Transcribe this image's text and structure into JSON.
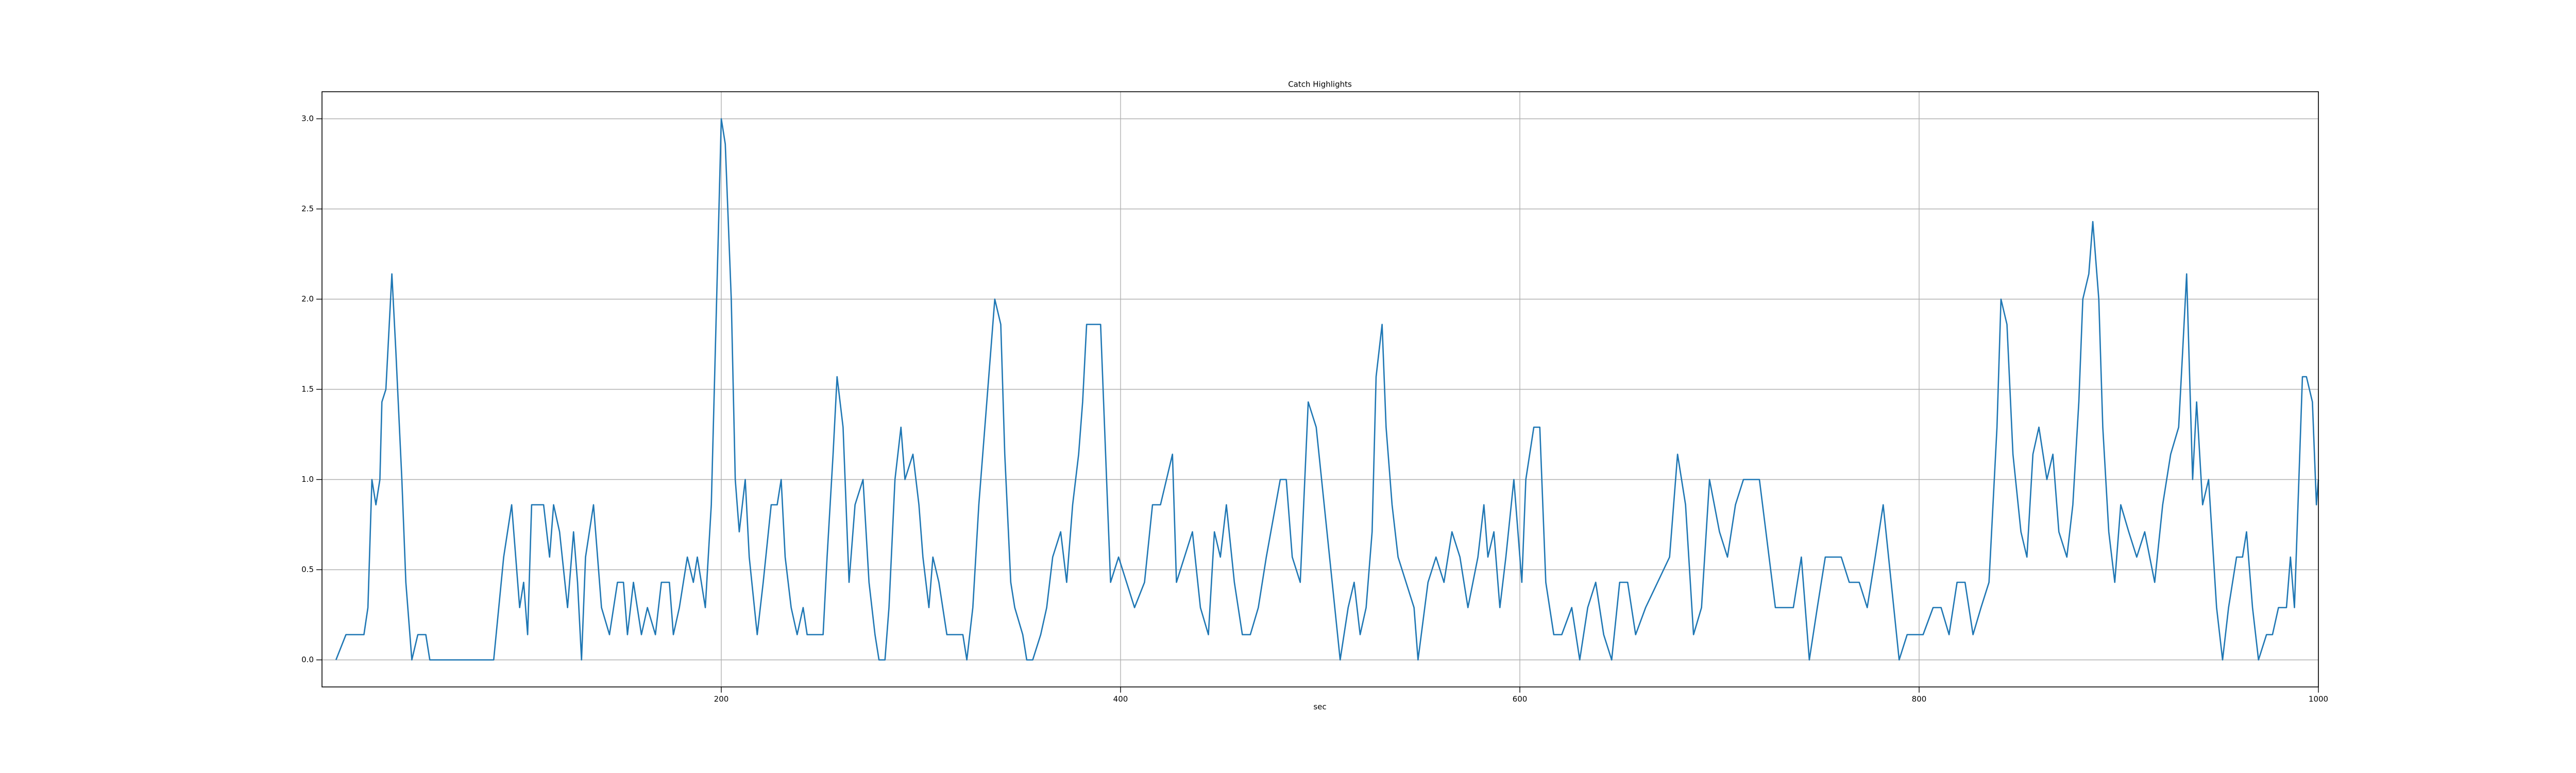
{
  "chart_data": {
    "type": "line",
    "title": "Catch Highlights",
    "xlabel": "sec",
    "color": "#1f77b4",
    "grid": true,
    "xlim": [
      0,
      1000
    ],
    "xticks": [
      200,
      400,
      600,
      800,
      1000
    ],
    "ylim": [
      -0.15,
      3.15
    ],
    "yticks": [
      {
        "value": 0,
        "label": "0.0"
      },
      0.5,
      {
        "value": 1,
        "label": "1.0"
      },
      1.5,
      {
        "value": 2,
        "label": "2.0"
      },
      2.5,
      {
        "value": 3,
        "label": "3.0"
      }
    ],
    "x": [
      7,
      12,
      21,
      23,
      25,
      27,
      29,
      30,
      32,
      35,
      37,
      40,
      42,
      45,
      48,
      52,
      54,
      86,
      91,
      95,
      99,
      101,
      103,
      105,
      111,
      114,
      116,
      119,
      123,
      126,
      128,
      130,
      132,
      136,
      140,
      144,
      148,
      151,
      153,
      156,
      160,
      163,
      167,
      170,
      174,
      176,
      179,
      183,
      186,
      188,
      192,
      195,
      197,
      200,
      202,
      205,
      207,
      209,
      212,
      214,
      218,
      221,
      225,
      228,
      230,
      232,
      235,
      238,
      241,
      243,
      251,
      253,
      256,
      258,
      261,
      264,
      267,
      271,
      274,
      277,
      279,
      282,
      284,
      287,
      290,
      292,
      296,
      299,
      301,
      304,
      306,
      309,
      313,
      321,
      323,
      326,
      329,
      333,
      337,
      340,
      342,
      345,
      347,
      351,
      353,
      356,
      360,
      363,
      366,
      370,
      373,
      376,
      379,
      381,
      383,
      390,
      393,
      395,
      399,
      403,
      407,
      412,
      416,
      420,
      426,
      428,
      432,
      436,
      440,
      444,
      447,
      450,
      453,
      457,
      461,
      465,
      469,
      473,
      480,
      483,
      486,
      490,
      494,
      498,
      502,
      506,
      510,
      514,
      517,
      520,
      523,
      526,
      528,
      531,
      533,
      536,
      539,
      543,
      547,
      549,
      554,
      558,
      562,
      566,
      570,
      574,
      579,
      582,
      584,
      587,
      590,
      593,
      597,
      601,
      603,
      607,
      610,
      613,
      617,
      621,
      626,
      630,
      634,
      638,
      642,
      646,
      650,
      654,
      658,
      663,
      669,
      675,
      679,
      683,
      687,
      691,
      695,
      700,
      704,
      708,
      712,
      720,
      728,
      737,
      741,
      745,
      749,
      753,
      761,
      765,
      770,
      774,
      778,
      782,
      786,
      790,
      794,
      798,
      802,
      807,
      811,
      815,
      819,
      823,
      827,
      831,
      835,
      839,
      841,
      844,
      847,
      851,
      854,
      857,
      860,
      864,
      867,
      870,
      874,
      877,
      880,
      882,
      885,
      887,
      890,
      892,
      895,
      898,
      901,
      905,
      909,
      913,
      918,
      922,
      926,
      930,
      932,
      934,
      937,
      939,
      942,
      945,
      949,
      952,
      955,
      959,
      962,
      964,
      967,
      970,
      974,
      977,
      980,
      984,
      986,
      988,
      992,
      994,
      997,
      999,
      1000
    ],
    "values": [
      0,
      0.14,
      0.14,
      0.29,
      1.0,
      0.86,
      1.0,
      1.43,
      1.5,
      2.14,
      1.71,
      1.0,
      0.43,
      0,
      0.14,
      0.14,
      0,
      0,
      0.57,
      0.86,
      0.29,
      0.43,
      0.14,
      0.86,
      0.86,
      0.57,
      0.86,
      0.71,
      0.29,
      0.71,
      0.43,
      0,
      0.57,
      0.86,
      0.29,
      0.14,
      0.43,
      0.43,
      0.14,
      0.43,
      0.14,
      0.29,
      0.14,
      0.43,
      0.43,
      0.14,
      0.29,
      0.57,
      0.43,
      0.57,
      0.29,
      0.86,
      1.71,
      3.0,
      2.86,
      2.0,
      1.0,
      0.71,
      1.0,
      0.57,
      0.14,
      0.43,
      0.86,
      0.86,
      1.0,
      0.57,
      0.29,
      0.14,
      0.29,
      0.14,
      0.14,
      0.57,
      1.14,
      1.57,
      1.29,
      0.43,
      0.86,
      1.0,
      0.43,
      0.14,
      0,
      0,
      0.29,
      1.0,
      1.29,
      1.0,
      1.14,
      0.86,
      0.57,
      0.29,
      0.57,
      0.43,
      0.14,
      0.14,
      0,
      0.29,
      0.86,
      1.43,
      2.0,
      1.86,
      1.14,
      0.43,
      0.29,
      0.14,
      0,
      0,
      0.14,
      0.29,
      0.57,
      0.71,
      0.43,
      0.86,
      1.14,
      1.43,
      1.86,
      1.86,
      1.0,
      0.43,
      0.57,
      0.43,
      0.29,
      0.43,
      0.86,
      0.86,
      1.14,
      0.43,
      0.57,
      0.71,
      0.29,
      0.14,
      0.71,
      0.57,
      0.86,
      0.43,
      0.14,
      0.14,
      0.29,
      0.57,
      1.0,
      1.0,
      0.57,
      0.43,
      1.43,
      1.29,
      0.86,
      0.43,
      0,
      0.29,
      0.43,
      0.14,
      0.29,
      0.71,
      1.57,
      1.86,
      1.29,
      0.86,
      0.57,
      0.43,
      0.29,
      0,
      0.43,
      0.57,
      0.43,
      0.71,
      0.57,
      0.29,
      0.57,
      0.86,
      0.57,
      0.71,
      0.29,
      0.57,
      1.0,
      0.43,
      1.0,
      1.29,
      1.29,
      0.43,
      0.14,
      0.14,
      0.29,
      0,
      0.29,
      0.43,
      0.14,
      0,
      0.43,
      0.43,
      0.14,
      0.29,
      0.43,
      0.57,
      1.14,
      0.86,
      0.14,
      0.29,
      1.0,
      0.71,
      0.57,
      0.86,
      1.0,
      1.0,
      0.29,
      0.29,
      0.57,
      0,
      0.29,
      0.57,
      0.57,
      0.43,
      0.43,
      0.29,
      0.57,
      0.86,
      0.43,
      0,
      0.14,
      0.14,
      0.14,
      0.29,
      0.29,
      0.14,
      0.43,
      0.43,
      0.14,
      0.29,
      0.43,
      1.29,
      2.0,
      1.86,
      1.14,
      0.71,
      0.57,
      1.14,
      1.29,
      1.0,
      1.14,
      0.71,
      0.57,
      0.86,
      1.43,
      2.0,
      2.14,
      2.43,
      2.0,
      1.29,
      0.71,
      0.43,
      0.86,
      0.71,
      0.57,
      0.71,
      0.43,
      0.86,
      1.14,
      1.29,
      1.71,
      2.14,
      1.0,
      1.43,
      0.86,
      1.0,
      0.29,
      0,
      0.29,
      0.57,
      0.57,
      0.71,
      0.29,
      0,
      0.14,
      0.14,
      0.29,
      0.29,
      0.57,
      0.29,
      1.57,
      1.57,
      1.43,
      0.86,
      1.0
    ]
  }
}
